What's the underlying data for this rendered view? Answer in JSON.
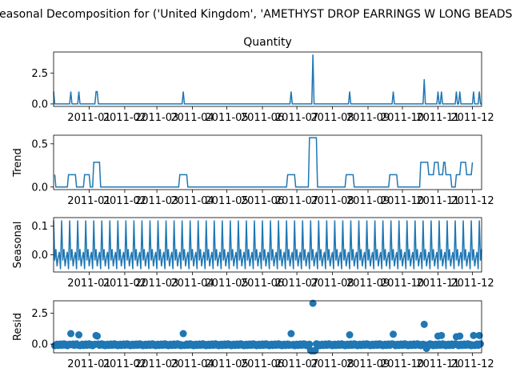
{
  "figure_title": "Seasonal Decomposition for ('United Kingdom', 'AMETHYST DROP EARRINGS W LONG BEADS')",
  "colors": {
    "series": "#1f77b4",
    "axis": "#000000",
    "background": "#ffffff"
  },
  "chart_data": [
    {
      "type": "line",
      "title": "Quantity",
      "ylabel": "",
      "ylim": [
        -0.2,
        4.2
      ],
      "yticks": [
        "0.0",
        "2.5"
      ],
      "ytick_values": [
        0,
        2.5
      ],
      "xlim": [
        "2010-12-01",
        "2011-12-09"
      ],
      "xticks": [
        "2011-01",
        "2011-02",
        "2011-03",
        "2011-04",
        "2011-05",
        "2011-06",
        "2011-07",
        "2011-08",
        "2011-09",
        "2011-10",
        "2011-11",
        "2011-12"
      ],
      "grid": false,
      "baseline": 0,
      "spikes": [
        {
          "x": "2010-12-01",
          "y": 1
        },
        {
          "x": "2010-12-16",
          "y": 1
        },
        {
          "x": "2010-12-23",
          "y": 1
        },
        {
          "x": "2011-01-07",
          "y": 1
        },
        {
          "x": "2011-01-08",
          "y": 1
        },
        {
          "x": "2011-03-24",
          "y": 1
        },
        {
          "x": "2011-06-26",
          "y": 1
        },
        {
          "x": "2011-07-15",
          "y": 4
        },
        {
          "x": "2011-08-16",
          "y": 1
        },
        {
          "x": "2011-09-23",
          "y": 1
        },
        {
          "x": "2011-10-20",
          "y": 2
        },
        {
          "x": "2011-11-01",
          "y": 1
        },
        {
          "x": "2011-11-04",
          "y": 1
        },
        {
          "x": "2011-11-17",
          "y": 1
        },
        {
          "x": "2011-11-20",
          "y": 1
        },
        {
          "x": "2011-12-02",
          "y": 1
        },
        {
          "x": "2011-12-07",
          "y": 1
        }
      ]
    },
    {
      "type": "line",
      "title": "",
      "ylabel": "Trend",
      "ylim": [
        -0.03,
        0.6
      ],
      "yticks": [
        "0.0",
        "0.5"
      ],
      "ytick_values": [
        0,
        0.5
      ],
      "xlim": [
        "2010-12-01",
        "2011-12-09"
      ],
      "xticks": [
        "2011-01",
        "2011-02",
        "2011-03",
        "2011-04",
        "2011-05",
        "2011-06",
        "2011-07",
        "2011-08",
        "2011-09",
        "2011-10",
        "2011-11",
        "2011-12"
      ],
      "grid": false,
      "points": [
        {
          "x": "2010-12-02",
          "y": 0.143
        },
        {
          "x": "2010-12-03",
          "y": 0
        },
        {
          "x": "2010-12-13",
          "y": 0
        },
        {
          "x": "2010-12-14",
          "y": 0.143
        },
        {
          "x": "2010-12-20",
          "y": 0.143
        },
        {
          "x": "2010-12-21",
          "y": 0
        },
        {
          "x": "2010-12-27",
          "y": 0
        },
        {
          "x": "2010-12-28",
          "y": 0.143
        },
        {
          "x": "2011-01-01",
          "y": 0.143
        },
        {
          "x": "2011-01-02",
          "y": 0
        },
        {
          "x": "2011-01-04",
          "y": 0
        },
        {
          "x": "2011-01-05",
          "y": 0.286
        },
        {
          "x": "2011-01-10",
          "y": 0.286
        },
        {
          "x": "2011-01-11",
          "y": 0
        },
        {
          "x": "2011-03-20",
          "y": 0
        },
        {
          "x": "2011-03-21",
          "y": 0.143
        },
        {
          "x": "2011-03-27",
          "y": 0.143
        },
        {
          "x": "2011-03-28",
          "y": 0
        },
        {
          "x": "2011-06-22",
          "y": 0
        },
        {
          "x": "2011-06-23",
          "y": 0.143
        },
        {
          "x": "2011-06-29",
          "y": 0.143
        },
        {
          "x": "2011-06-30",
          "y": 0
        },
        {
          "x": "2011-07-11",
          "y": 0
        },
        {
          "x": "2011-07-12",
          "y": 0.571
        },
        {
          "x": "2011-07-18",
          "y": 0.571
        },
        {
          "x": "2011-07-19",
          "y": 0
        },
        {
          "x": "2011-08-12",
          "y": 0
        },
        {
          "x": "2011-08-13",
          "y": 0.143
        },
        {
          "x": "2011-08-19",
          "y": 0.143
        },
        {
          "x": "2011-08-20",
          "y": 0
        },
        {
          "x": "2011-09-19",
          "y": 0
        },
        {
          "x": "2011-09-20",
          "y": 0.143
        },
        {
          "x": "2011-09-26",
          "y": 0.143
        },
        {
          "x": "2011-09-27",
          "y": 0
        },
        {
          "x": "2011-10-16",
          "y": 0
        },
        {
          "x": "2011-10-17",
          "y": 0.286
        },
        {
          "x": "2011-10-23",
          "y": 0.286
        },
        {
          "x": "2011-10-24",
          "y": 0.143
        },
        {
          "x": "2011-10-28",
          "y": 0.143
        },
        {
          "x": "2011-10-29",
          "y": 0.286
        },
        {
          "x": "2011-11-01",
          "y": 0.286
        },
        {
          "x": "2011-11-02",
          "y": 0.143
        },
        {
          "x": "2011-11-05",
          "y": 0.143
        },
        {
          "x": "2011-11-06",
          "y": 0.286
        },
        {
          "x": "2011-11-07",
          "y": 0.286
        },
        {
          "x": "2011-11-08",
          "y": 0.143
        },
        {
          "x": "2011-11-12",
          "y": 0.143
        },
        {
          "x": "2011-11-13",
          "y": 0
        },
        {
          "x": "2011-11-16",
          "y": 0
        },
        {
          "x": "2011-11-17",
          "y": 0.143
        },
        {
          "x": "2011-11-20",
          "y": 0.143
        },
        {
          "x": "2011-11-21",
          "y": 0.286
        },
        {
          "x": "2011-11-25",
          "y": 0.286
        },
        {
          "x": "2011-11-26",
          "y": 0.143
        },
        {
          "x": "2011-11-30",
          "y": 0.143
        },
        {
          "x": "2011-12-01",
          "y": 0.286
        }
      ]
    },
    {
      "type": "line",
      "title": "",
      "ylabel": "Seasonal",
      "ylim": [
        -0.06,
        0.13
      ],
      "yticks": [
        "0.0",
        "0.1"
      ],
      "ytick_values": [
        0,
        0.1
      ],
      "xlim": [
        "2010-12-01",
        "2011-12-09"
      ],
      "xticks": [
        "2011-01",
        "2011-02",
        "2011-03",
        "2011-04",
        "2011-05",
        "2011-06",
        "2011-07",
        "2011-08",
        "2011-09",
        "2011-10",
        "2011-11",
        "2011-12"
      ],
      "grid": false,
      "period_days": 7,
      "pattern": [
        0.12,
        -0.02,
        0.02,
        -0.04,
        -0.01,
        0.01,
        -0.05
      ]
    },
    {
      "type": "scatter",
      "title": "",
      "ylabel": "Resid",
      "ylim": [
        -0.7,
        3.5
      ],
      "yticks": [
        "0.0",
        "2.5"
      ],
      "ytick_values": [
        0,
        2.5
      ],
      "xlim": [
        "2010-12-01",
        "2011-12-09"
      ],
      "xticks": [
        "2011-01",
        "2011-02",
        "2011-03",
        "2011-04",
        "2011-05",
        "2011-06",
        "2011-07",
        "2011-08",
        "2011-09",
        "2011-10",
        "2011-11",
        "2011-12"
      ],
      "grid": false,
      "outliers": [
        {
          "x": "2010-12-16",
          "y": 0.85
        },
        {
          "x": "2010-12-23",
          "y": 0.75
        },
        {
          "x": "2011-01-07",
          "y": 0.7
        },
        {
          "x": "2011-01-08",
          "y": 0.65
        },
        {
          "x": "2011-03-24",
          "y": 0.85
        },
        {
          "x": "2011-06-26",
          "y": 0.85
        },
        {
          "x": "2011-07-13",
          "y": -0.5
        },
        {
          "x": "2011-07-14",
          "y": -0.55
        },
        {
          "x": "2011-07-15",
          "y": 3.3
        },
        {
          "x": "2011-07-16",
          "y": -0.55
        },
        {
          "x": "2011-07-17",
          "y": -0.5
        },
        {
          "x": "2011-08-16",
          "y": 0.75
        },
        {
          "x": "2011-09-23",
          "y": 0.8
        },
        {
          "x": "2011-10-20",
          "y": 1.6
        },
        {
          "x": "2011-10-22",
          "y": -0.35
        },
        {
          "x": "2011-11-01",
          "y": 0.65
        },
        {
          "x": "2011-11-04",
          "y": 0.7
        },
        {
          "x": "2011-11-17",
          "y": 0.6
        },
        {
          "x": "2011-11-20",
          "y": 0.65
        },
        {
          "x": "2011-12-02",
          "y": 0.7
        },
        {
          "x": "2011-12-07",
          "y": 0.7
        }
      ]
    }
  ]
}
